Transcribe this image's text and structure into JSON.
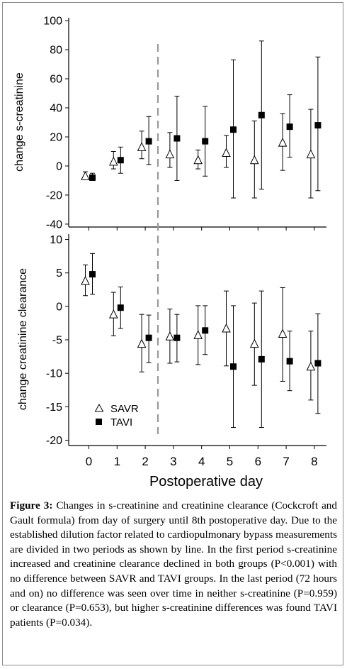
{
  "caption": {
    "label": "Figure 3:",
    "text": "Changes in s-creatinine and creatinine clearance (Cockcroft and Gault formula) from day of surgery until 8th postoperative day. Due to the established dilution factor related to cardiopulmonary bypass measurements are divided in two periods as shown by line. In the first period s-creatinine increased and creatinine clearance declined in both groups (P<0.001) with no difference between SAVR and TAVI groups. In the last period (72 hours and on) no difference was seen over time in neither s-creatinine (P=0.959) or clearance (P=0.653), but higher s-creatinine differences was found TAVI patients (P=0.034)."
  },
  "chart_data": [
    {
      "type": "scatter",
      "title": "",
      "xlabel": "Postoperative day",
      "ylabel": "change s-creatinine",
      "x": [
        0,
        1,
        2,
        3,
        4,
        5,
        6,
        7,
        8
      ],
      "xticks": [
        "0",
        "1",
        "2",
        "3",
        "4",
        "5",
        "6",
        "7",
        "8"
      ],
      "yticks": [
        -40,
        -20,
        0,
        20,
        40,
        60,
        80,
        100
      ],
      "ylim": [
        -42,
        102
      ],
      "grid": false,
      "divider_day": 2.5,
      "series": [
        {
          "name": "SAVR",
          "marker": "open-triangle",
          "values": [
            -7,
            3,
            13,
            8,
            4,
            9,
            4,
            16,
            8
          ],
          "err_low": [
            -9,
            -2,
            5,
            -1,
            -2,
            -1,
            -22,
            -3,
            -22
          ],
          "err_high": [
            -4,
            10,
            24,
            23,
            11,
            21,
            31,
            36,
            39
          ]
        },
        {
          "name": "TAVI",
          "marker": "filled-square",
          "values": [
            -8,
            4,
            17,
            19,
            17,
            25,
            35,
            27,
            28
          ],
          "err_low": [
            -10,
            -5,
            1,
            -10,
            -7,
            -22,
            -16,
            6,
            -17
          ],
          "err_high": [
            -5,
            13,
            34,
            48,
            41,
            73,
            86,
            49,
            75
          ]
        }
      ]
    },
    {
      "type": "scatter",
      "title": "",
      "xlabel": "Postoperative day",
      "ylabel": "change creatinine clearance",
      "x": [
        0,
        1,
        2,
        3,
        4,
        5,
        6,
        7,
        8
      ],
      "xticks": [
        "0",
        "1",
        "2",
        "3",
        "4",
        "5",
        "6",
        "7",
        "8"
      ],
      "yticks": [
        -20,
        -15,
        -10,
        -5,
        0,
        5,
        10
      ],
      "ylim": [
        -20.8,
        10.8
      ],
      "grid": false,
      "divider_day": 2.5,
      "legend": "bottom-left",
      "series": [
        {
          "name": "SAVR",
          "marker": "open-triangle",
          "values": [
            3.8,
            -1.2,
            -5.6,
            -4.5,
            -4.3,
            -3.3,
            -5.6,
            -4.1,
            -9.0
          ],
          "err_low": [
            1.6,
            -4.4,
            -9.8,
            -8.5,
            -8.7,
            -8.9,
            -11.8,
            -11.2,
            -14.0
          ],
          "err_high": [
            6.2,
            2.1,
            -1.2,
            -0.4,
            0.1,
            2.3,
            0.5,
            2.8,
            -3.7
          ]
        },
        {
          "name": "TAVI",
          "marker": "filled-square",
          "values": [
            4.8,
            -0.2,
            -4.7,
            -4.7,
            -3.6,
            -9.0,
            -7.9,
            -8.2,
            -8.5
          ],
          "err_low": [
            1.8,
            -3.3,
            -8.4,
            -8.3,
            -7.2,
            -18.1,
            -18.1,
            -12.6,
            -16.0
          ],
          "err_high": [
            7.9,
            2.9,
            -1.3,
            -1.2,
            0.1,
            0.1,
            2.3,
            -3.7,
            -1.1
          ]
        }
      ]
    }
  ]
}
